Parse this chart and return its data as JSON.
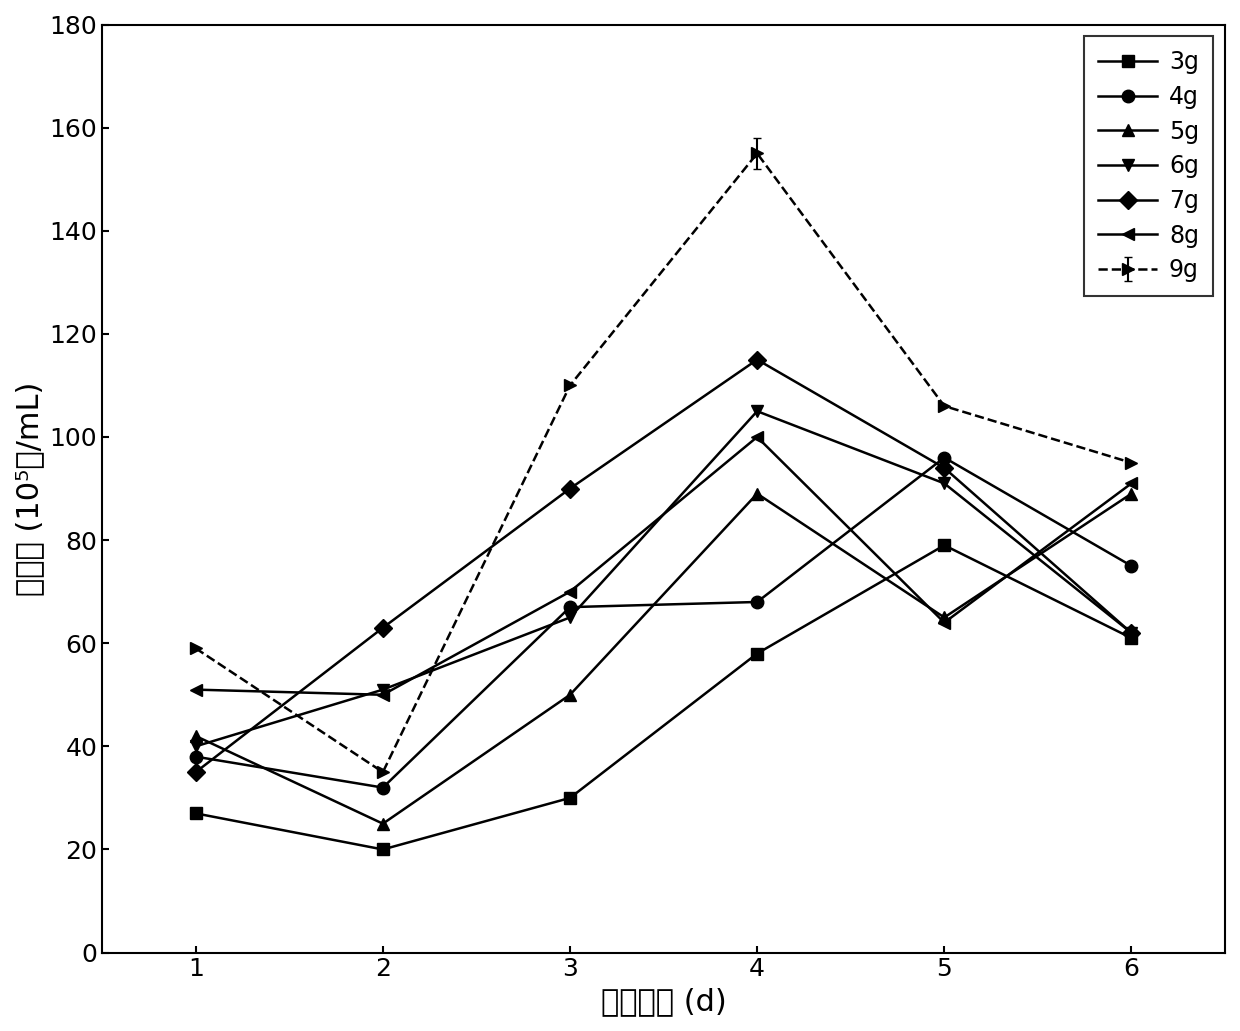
{
  "x": [
    1,
    2,
    3,
    4,
    5,
    6
  ],
  "series": {
    "3g": {
      "y": [
        27,
        20,
        30,
        58,
        79,
        61
      ],
      "marker": "s",
      "linestyle": "-",
      "yerr": [
        0,
        0,
        0,
        0,
        0,
        0
      ]
    },
    "4g": {
      "y": [
        38,
        32,
        67,
        68,
        96,
        75
      ],
      "marker": "o",
      "linestyle": "-",
      "yerr": [
        0,
        0,
        0,
        0,
        0,
        0
      ]
    },
    "5g": {
      "y": [
        42,
        25,
        50,
        89,
        65,
        89
      ],
      "marker": "^",
      "linestyle": "-",
      "yerr": [
        0,
        0,
        0,
        0,
        0,
        0
      ]
    },
    "6g": {
      "y": [
        40,
        51,
        65,
        105,
        91,
        62
      ],
      "marker": "v",
      "linestyle": "-",
      "yerr": [
        0,
        0,
        0,
        0,
        0,
        0
      ]
    },
    "7g": {
      "y": [
        35,
        63,
        90,
        115,
        94,
        62
      ],
      "marker": "D",
      "linestyle": "-",
      "yerr": [
        0,
        0,
        0,
        0,
        0,
        0
      ]
    },
    "8g": {
      "y": [
        51,
        50,
        70,
        100,
        64,
        91
      ],
      "marker": "<",
      "linestyle": "-",
      "yerr": [
        0,
        0,
        0,
        0,
        0,
        0
      ]
    },
    "9g": {
      "y": [
        59,
        35,
        110,
        155,
        106,
        95
      ],
      "marker": ">",
      "linestyle": "--",
      "yerr": [
        0,
        0,
        0,
        3,
        0,
        0
      ]
    }
  },
  "series_order": [
    "3g",
    "4g",
    "5g",
    "6g",
    "7g",
    "8g",
    "9g"
  ],
  "xlabel": "发酵天数 (d)",
  "ylabel": "孢子数 (10⁵个/mL)",
  "xlim": [
    0.5,
    6.5
  ],
  "ylim": [
    0,
    180
  ],
  "yticks": [
    0,
    20,
    40,
    60,
    80,
    100,
    120,
    140,
    160,
    180
  ],
  "xticks": [
    1,
    2,
    3,
    4,
    5,
    6
  ],
  "figsize": [
    12.4,
    10.31
  ],
  "dpi": 100,
  "markersize": 9,
  "linewidth": 1.8,
  "capsize": 3
}
